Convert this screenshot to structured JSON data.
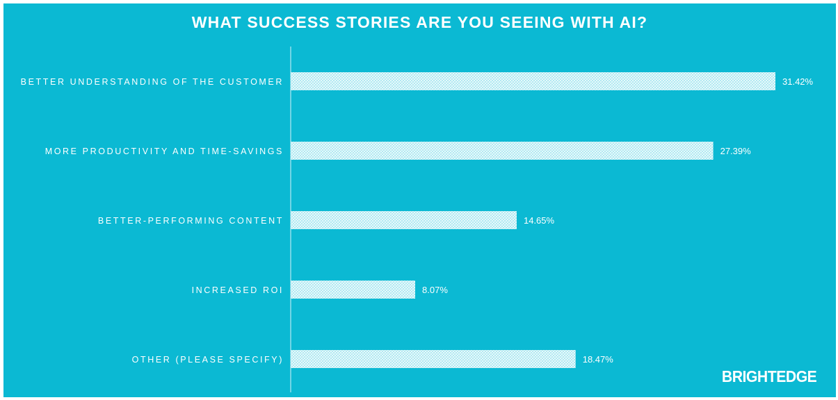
{
  "chart_data": {
    "type": "bar",
    "orientation": "horizontal",
    "title": "WHAT SUCCESS STORIES ARE YOU SEEING WITH AI?",
    "categories": [
      "BETTER UNDERSTANDING OF THE CUSTOMER",
      "MORE PRODUCTIVITY AND TIME-SAVINGS",
      "BETTER-PERFORMING CONTENT",
      "INCREASED ROI",
      "OTHER (PLEASE SPECIFY)"
    ],
    "values": [
      31.42,
      27.39,
      14.65,
      8.07,
      18.47
    ],
    "value_labels": [
      "31.42%",
      "27.39%",
      "14.65%",
      "8.07%",
      "18.47%"
    ],
    "xlim": [
      0,
      31.42
    ],
    "grid": false,
    "legend": "none"
  },
  "brand": {
    "logo_text": "BRIGHTEDGE"
  },
  "colors": {
    "background": "#0bb9d3",
    "bar_pattern_line": "#ffffff",
    "text": "#ffffff"
  }
}
